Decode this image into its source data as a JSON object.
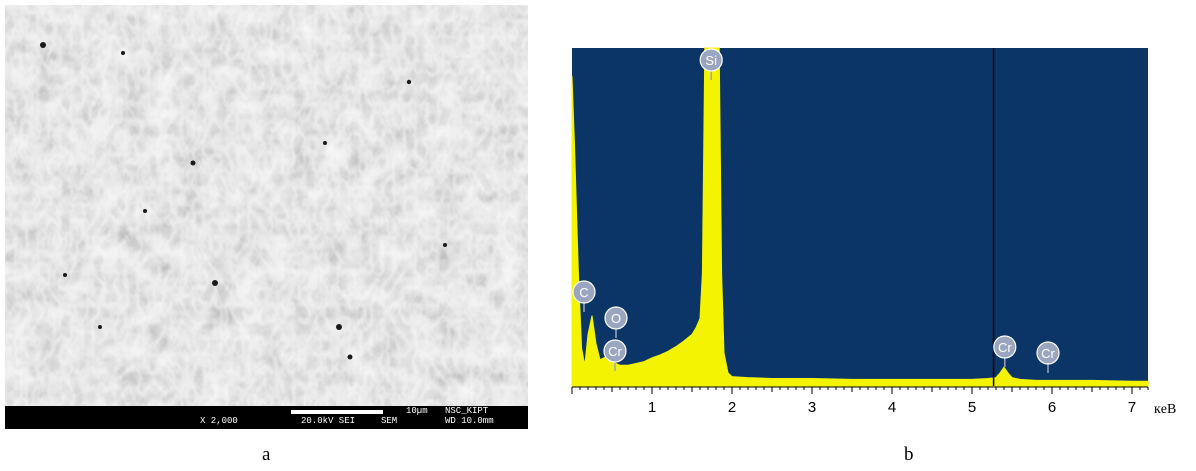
{
  "panel_a": {
    "label": "a",
    "magnification": "X 2,000",
    "voltage": "20.0kV SEI",
    "mode": "SEM",
    "scale_bar_text": "10µm",
    "lab": "NSC_KIPT",
    "working_distance": "WD 10.0mm"
  },
  "panel_b": {
    "label": "b"
  },
  "colors": {
    "plot_background": "#0b3566",
    "spectrum": "#f4f400",
    "marker": "#9aa6c0",
    "cursor_line": "#000000"
  },
  "chart_data": {
    "type": "area",
    "title": "",
    "xlabel": "кeB",
    "ylabel": "",
    "xlim": [
      0,
      7.2
    ],
    "x_ticks": [
      "1",
      "2",
      "3",
      "4",
      "5",
      "6",
      "7"
    ],
    "grid": false,
    "cursor_x": 5.27,
    "x": [
      0.0,
      0.03,
      0.08,
      0.12,
      0.16,
      0.2,
      0.25,
      0.3,
      0.35,
      0.4,
      0.45,
      0.5,
      0.55,
      0.6,
      0.7,
      0.8,
      0.9,
      1.0,
      1.1,
      1.2,
      1.3,
      1.4,
      1.5,
      1.55,
      1.6,
      1.63,
      1.66,
      1.69,
      1.72,
      1.75,
      1.78,
      1.81,
      1.84,
      1.87,
      1.9,
      1.95,
      2.0,
      2.2,
      2.5,
      3.0,
      3.5,
      4.0,
      4.5,
      5.0,
      5.2,
      5.3,
      5.35,
      5.4,
      5.45,
      5.5,
      5.6,
      5.8,
      6.0,
      6.5,
      7.0,
      7.2
    ],
    "y": [
      330,
      260,
      120,
      40,
      22,
      55,
      75,
      45,
      28,
      30,
      32,
      26,
      24,
      22,
      22,
      24,
      26,
      30,
      33,
      37,
      42,
      48,
      55,
      62,
      72,
      120,
      400,
      1000,
      1000,
      1000,
      1000,
      1000,
      600,
      120,
      35,
      14,
      10,
      9,
      8,
      8,
      7,
      7,
      7,
      7,
      8,
      9,
      14,
      20,
      14,
      9,
      7,
      6,
      6,
      6,
      5,
      5
    ],
    "peak_labels": [
      {
        "element": "Si",
        "energy": 1.74
      },
      {
        "element": "C",
        "energy": 0.1
      },
      {
        "element": "O",
        "energy": 0.4
      },
      {
        "element": "Cr",
        "energy": 0.4
      },
      {
        "element": "Cr",
        "energy": 5.41
      },
      {
        "element": "Cr",
        "energy": 5.95
      }
    ]
  }
}
